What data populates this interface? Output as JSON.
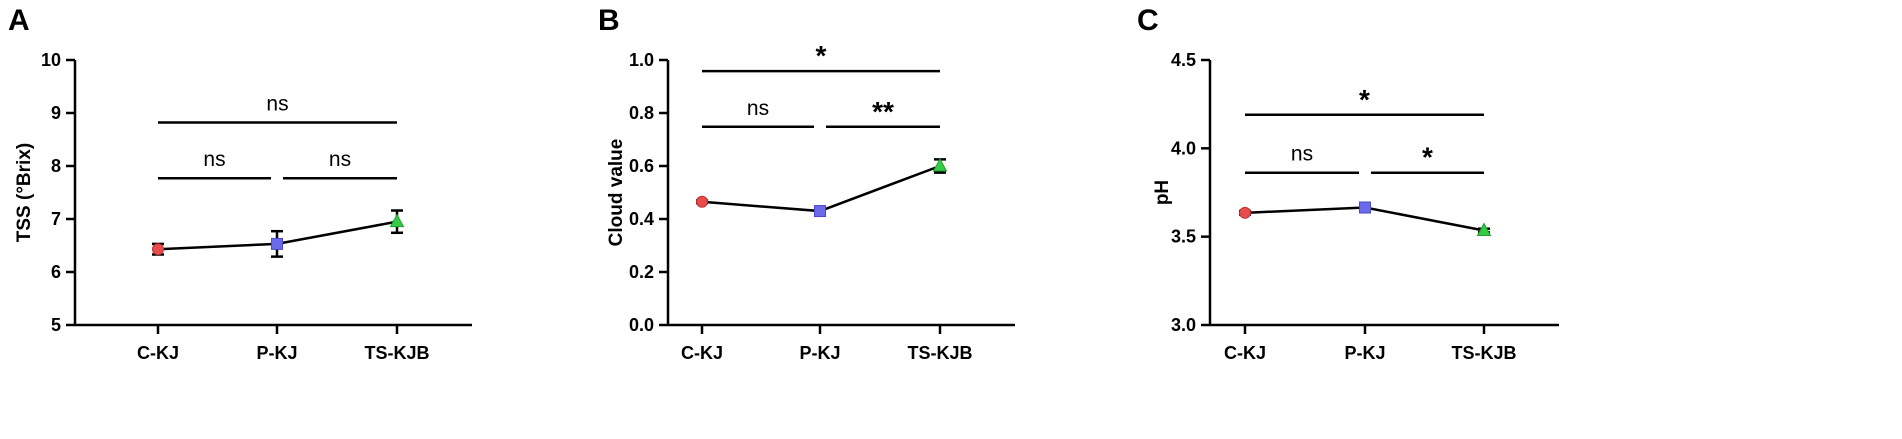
{
  "chart_data": [
    {
      "type": "line",
      "panel_label": "A",
      "categories": [
        "C-KJ",
        "P-KJ",
        "TS-KJB"
      ],
      "values": [
        6.43,
        6.53,
        6.95
      ],
      "errors": [
        0.1,
        0.24,
        0.21
      ],
      "ylabel": "TSS (°Brix)",
      "ylim": [
        5,
        10
      ],
      "yticks": [
        5,
        6,
        7,
        8,
        9,
        10
      ],
      "ytick_labels": [
        "5",
        "6",
        "7",
        "8",
        "9",
        "10"
      ],
      "marker_colors": [
        "#e84c4c",
        "#6b6bea",
        "#33cc44"
      ],
      "markers": [
        "circle",
        "square",
        "triangle"
      ],
      "significance": [
        {
          "from": 0,
          "to": 2,
          "level": 8.82,
          "label": "ns"
        },
        {
          "from": 0,
          "to": 1,
          "level": 7.77,
          "label": "ns"
        },
        {
          "from": 1,
          "to": 2,
          "level": 7.77,
          "label": "ns"
        }
      ]
    },
    {
      "type": "line",
      "panel_label": "B",
      "categories": [
        "C-KJ",
        "P-KJ",
        "TS-KJB"
      ],
      "values": [
        0.465,
        0.43,
        0.6
      ],
      "errors": [
        0.005,
        0.01,
        0.025
      ],
      "ylabel": "Cloud value",
      "ylim": [
        0,
        1
      ],
      "yticks": [
        0,
        0.2,
        0.4,
        0.6,
        0.8,
        1.0
      ],
      "ytick_labels": [
        "0.0",
        "0.2",
        "0.4",
        "0.6",
        "0.8",
        "1.0"
      ],
      "marker_colors": [
        "#e84c4c",
        "#6b6bea",
        "#33cc44"
      ],
      "markers": [
        "circle",
        "square",
        "triangle"
      ],
      "significance": [
        {
          "from": 0,
          "to": 2,
          "level": 0.958,
          "label": "*"
        },
        {
          "from": 0,
          "to": 1,
          "level": 0.748,
          "label": "ns"
        },
        {
          "from": 1,
          "to": 2,
          "level": 0.748,
          "label": "**"
        }
      ]
    },
    {
      "type": "line",
      "panel_label": "C",
      "categories": [
        "C-KJ",
        "P-KJ",
        "TS-KJB"
      ],
      "values": [
        3.635,
        3.665,
        3.535
      ],
      "errors": [
        0.01,
        0.01,
        0.01
      ],
      "ylabel": "pH",
      "ylim": [
        3.0,
        4.5
      ],
      "yticks": [
        3.0,
        3.5,
        4.0,
        4.5
      ],
      "ytick_labels": [
        "3.0",
        "3.5",
        "4.0",
        "4.5"
      ],
      "marker_colors": [
        "#e84c4c",
        "#6b6bea",
        "#33cc44"
      ],
      "markers": [
        "circle",
        "square",
        "triangle"
      ],
      "significance": [
        {
          "from": 0,
          "to": 2,
          "level": 4.19,
          "label": "*"
        },
        {
          "from": 0,
          "to": 1,
          "level": 3.862,
          "label": "ns"
        },
        {
          "from": 1,
          "to": 2,
          "level": 3.862,
          "label": "*"
        }
      ]
    }
  ]
}
